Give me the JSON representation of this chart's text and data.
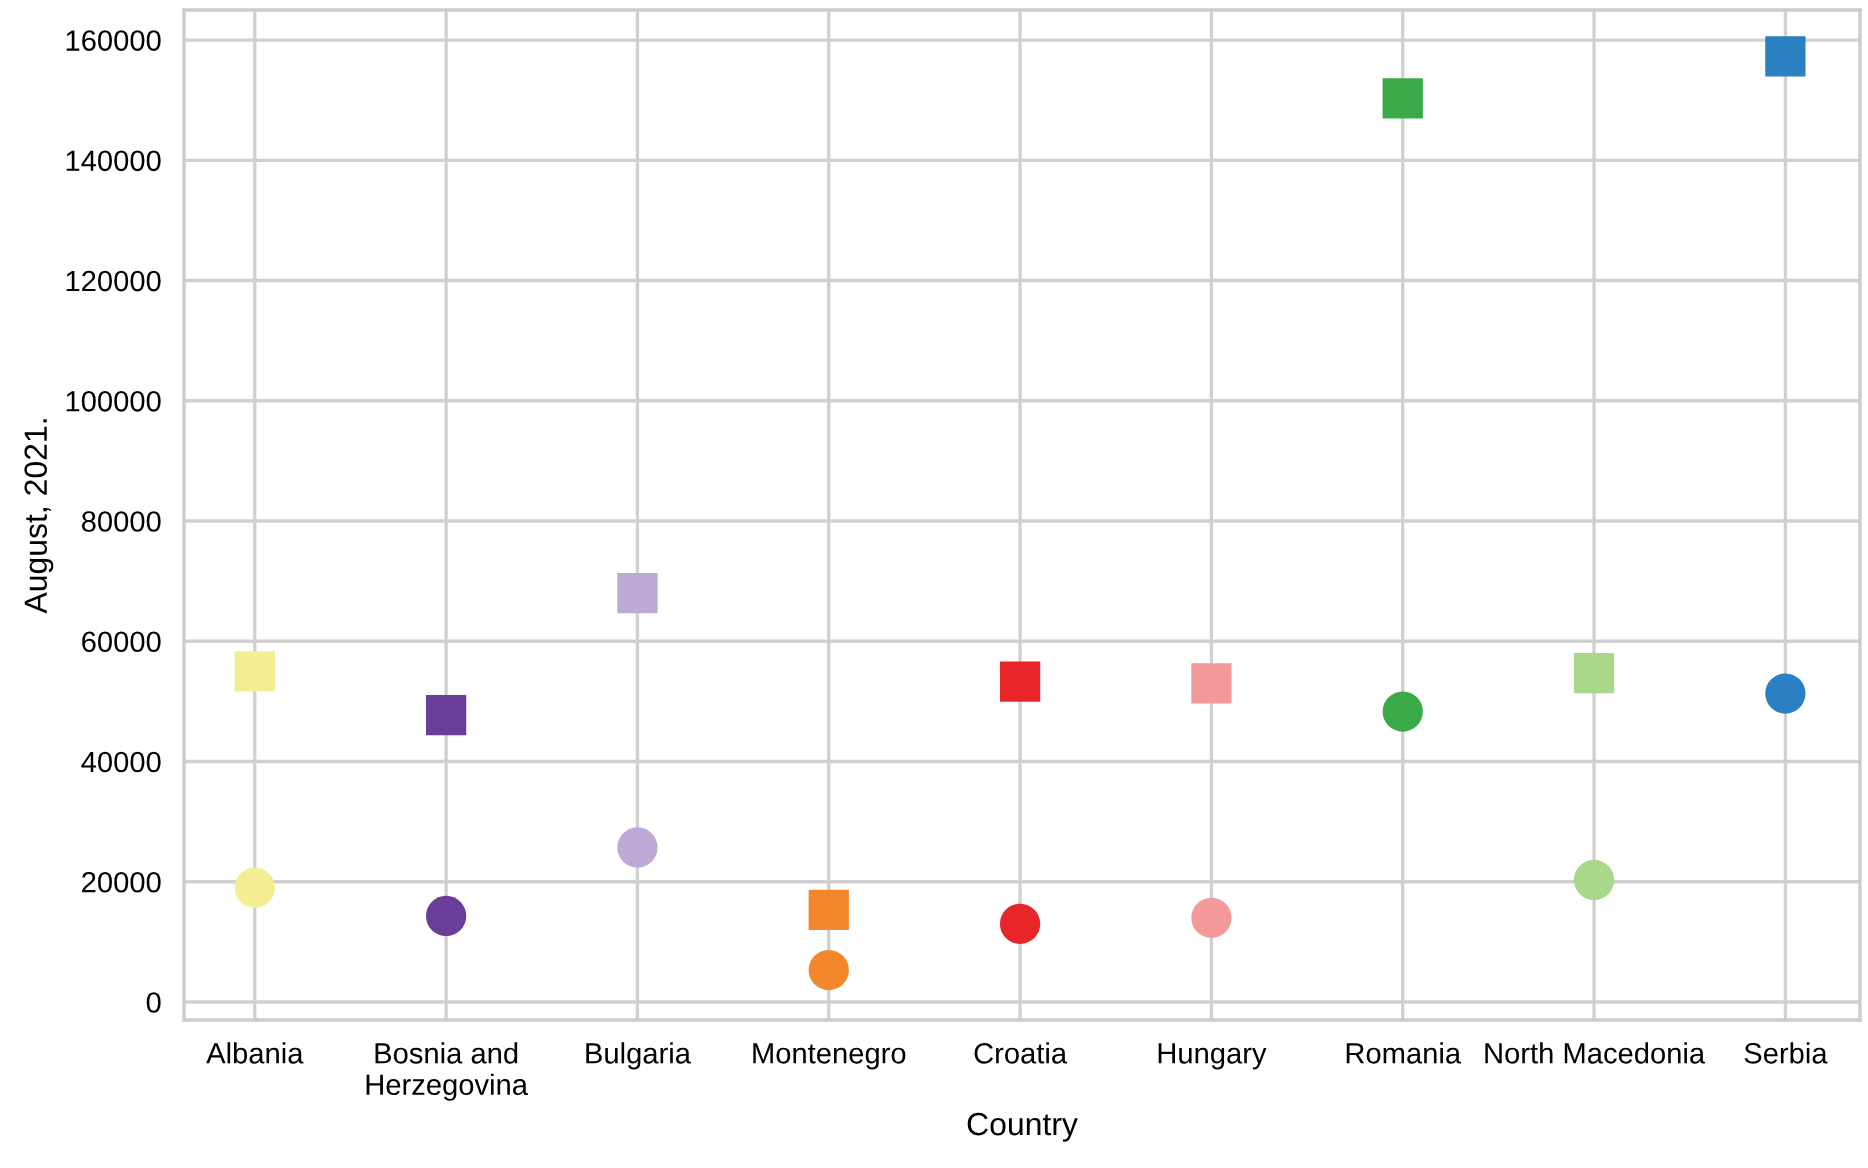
{
  "chart_data": {
    "type": "scatter",
    "xlabel": "Country",
    "ylabel": "August, 2021.",
    "categories": [
      "Albania",
      "Bosnia and\nHerzegovina",
      "Bulgaria",
      "Montenegro",
      "Croatia",
      "Hungary",
      "Romania",
      "North Macedonia",
      "Serbia"
    ],
    "series": [
      {
        "marker": "square",
        "colors": [
          "#f3ee92",
          "#6a3d9a",
          "#bea8d6",
          "#f4862b",
          "#e8262a",
          "#f4999a",
          "#3aaa48",
          "#a9d88a",
          "#2a80c0"
        ],
        "values": [
          55000,
          47700,
          68000,
          15300,
          53300,
          53000,
          150300,
          54700,
          157300
        ]
      },
      {
        "marker": "circle",
        "colors": [
          "#f3ee92",
          "#6a3d9a",
          "#bea8d6",
          "#f4862b",
          "#e8262a",
          "#f4999a",
          "#3aaa48",
          "#a9d88a",
          "#2a80c0"
        ],
        "values": [
          19000,
          14300,
          25700,
          5300,
          13000,
          14000,
          48300,
          20300,
          51300
        ]
      }
    ],
    "ylim": [
      -3000,
      165000
    ],
    "yticks": [
      0,
      20000,
      40000,
      60000,
      80000,
      100000,
      120000,
      140000,
      160000
    ],
    "grid": true,
    "legend": false
  }
}
